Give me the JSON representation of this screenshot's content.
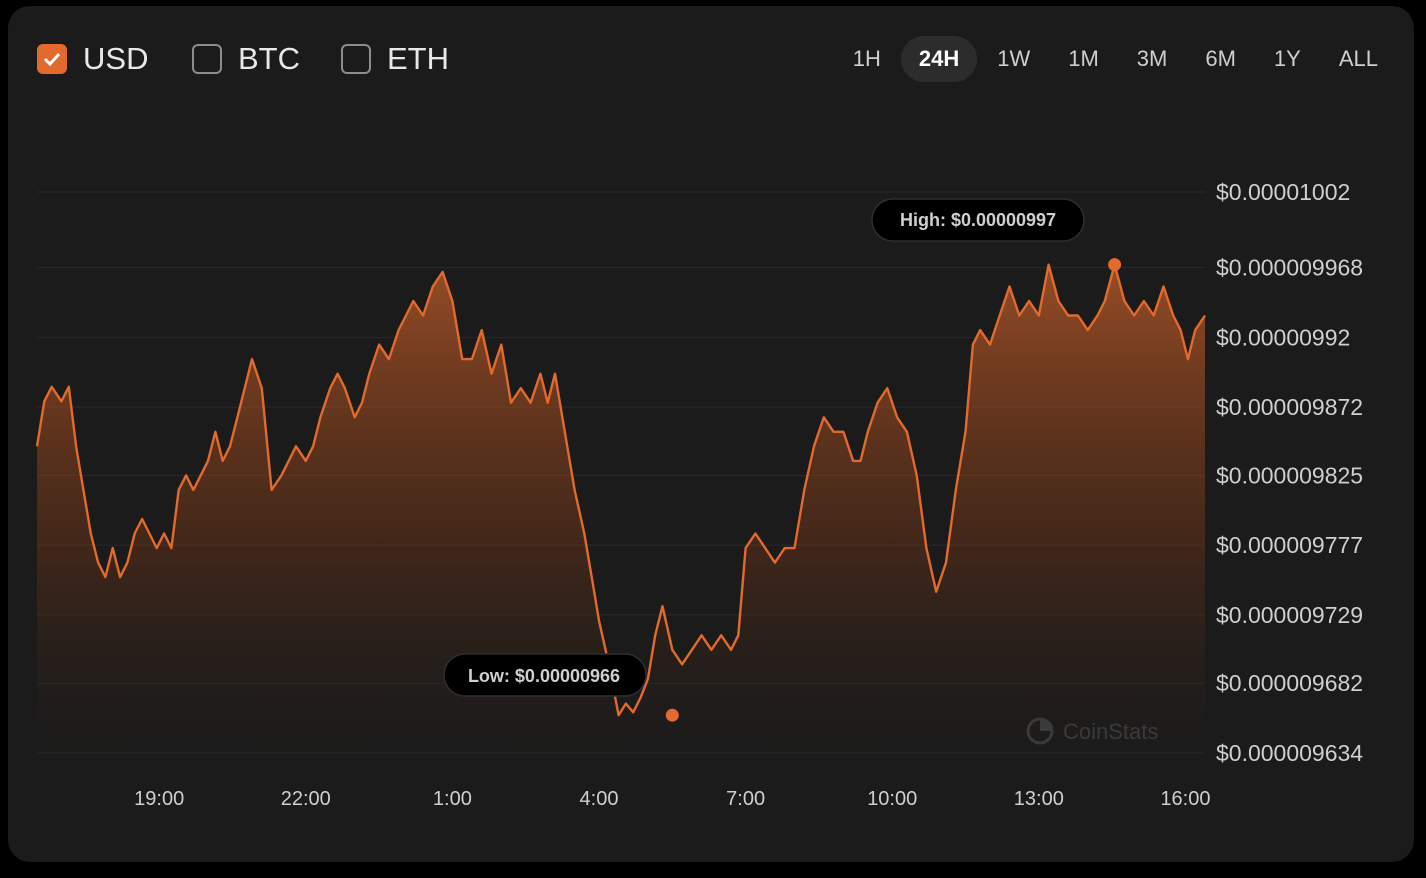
{
  "currencies": [
    {
      "label": "USD",
      "checked": true
    },
    {
      "label": "BTC",
      "checked": false
    },
    {
      "label": "ETH",
      "checked": false
    }
  ],
  "ranges": [
    {
      "label": "1H",
      "active": false
    },
    {
      "label": "24H",
      "active": true
    },
    {
      "label": "1W",
      "active": false
    },
    {
      "label": "1M",
      "active": false
    },
    {
      "label": "3M",
      "active": false
    },
    {
      "label": "6M",
      "active": false
    },
    {
      "label": "1Y",
      "active": false
    },
    {
      "label": "ALL",
      "active": false
    }
  ],
  "tooltips": {
    "high": "High: $0.00000997",
    "low": "Low: $0.00000966"
  },
  "watermark": "CoinStats",
  "colors": {
    "accent": "#e26a2c",
    "background": "#1b1b1b",
    "grid": "#2a2a2a",
    "text": "#cfcfcf"
  },
  "chart_data": {
    "type": "area",
    "x_unit": "hour of day (time axis; values past 24 are the next day)",
    "ylim": [
      9.634e-06,
      1.002e-05
    ],
    "y_ticks": [
      1.002e-05,
      9.968e-06,
      9.92e-06,
      9.872e-06,
      9.825e-06,
      9.777e-06,
      9.729e-06,
      9.682e-06,
      9.634e-06
    ],
    "y_tick_labels": [
      "$0.00001002",
      "$0.000009968",
      "$0.00000992",
      "$0.000009872",
      "$0.000009825",
      "$0.000009777",
      "$0.000009729",
      "$0.000009682",
      "$0.000009634"
    ],
    "x_ticks": [
      19,
      22,
      25,
      28,
      31,
      34,
      37,
      40
    ],
    "x_tick_labels": [
      "19:00",
      "22:00",
      "1:00",
      "4:00",
      "7:00",
      "10:00",
      "13:00",
      "16:00"
    ],
    "high": {
      "x": 38.55,
      "y": 9.97e-06
    },
    "low": {
      "x": 29.5,
      "y": 9.66e-06
    },
    "series": [
      {
        "x": [
          16.5,
          16.65,
          16.8,
          17.0,
          17.15,
          17.3,
          17.45,
          17.6,
          17.75,
          17.9,
          18.05,
          18.2,
          18.35,
          18.5,
          18.65,
          18.8,
          18.95,
          19.1,
          19.25,
          19.4,
          19.55,
          19.7,
          19.85,
          20.0,
          20.15,
          20.3,
          20.45,
          20.6,
          20.75,
          20.9,
          21.1,
          21.3,
          21.5,
          21.65,
          21.8,
          22.0,
          22.15,
          22.3,
          22.5,
          22.65,
          22.8,
          23.0,
          23.15,
          23.3,
          23.5,
          23.7,
          23.9,
          24.05,
          24.2,
          24.4,
          24.6,
          24.8,
          25.0,
          25.2,
          25.4,
          25.6,
          25.8,
          26.0,
          26.2,
          26.4,
          26.6,
          26.8,
          26.95,
          27.1,
          27.3,
          27.5,
          27.7,
          27.85,
          28.0,
          28.2,
          28.4,
          28.55,
          28.7,
          28.85,
          29.0,
          29.15,
          29.3,
          29.5,
          29.7,
          29.9,
          30.1,
          30.3,
          30.5,
          30.7,
          30.85,
          31.0,
          31.2,
          31.4,
          31.6,
          31.8,
          32.0,
          32.2,
          32.4,
          32.6,
          32.8,
          33.0,
          33.2,
          33.35,
          33.5,
          33.7,
          33.9,
          34.1,
          34.3,
          34.5,
          34.7,
          34.9,
          35.1,
          35.3,
          35.5,
          35.65,
          35.8,
          36.0,
          36.2,
          36.4,
          36.6,
          36.8,
          37.0,
          37.2,
          37.4,
          37.6,
          37.8,
          38.0,
          38.2,
          38.35,
          38.55,
          38.75,
          38.95,
          39.15,
          39.35,
          39.55,
          39.75,
          39.9,
          40.05,
          40.2,
          40.4
        ],
        "y": [
          9.845e-06,
          9.876e-06,
          9.886e-06,
          9.876e-06,
          9.886e-06,
          9.845e-06,
          9.815e-06,
          9.785e-06,
          9.765e-06,
          9.755e-06,
          9.775e-06,
          9.755e-06,
          9.765e-06,
          9.785e-06,
          9.795e-06,
          9.785e-06,
          9.775e-06,
          9.785e-06,
          9.775e-06,
          9.815e-06,
          9.825e-06,
          9.815e-06,
          9.825e-06,
          9.835e-06,
          9.855e-06,
          9.835e-06,
          9.845e-06,
          9.865e-06,
          9.885e-06,
          9.905e-06,
          9.885e-06,
          9.815e-06,
          9.825e-06,
          9.835e-06,
          9.845e-06,
          9.835e-06,
          9.845e-06,
          9.865e-06,
          9.885e-06,
          9.895e-06,
          9.885e-06,
          9.865e-06,
          9.875e-06,
          9.895e-06,
          9.915e-06,
          9.905e-06,
          9.925e-06,
          9.935e-06,
          9.945e-06,
          9.935e-06,
          9.955e-06,
          9.965e-06,
          9.945e-06,
          9.905e-06,
          9.905e-06,
          9.925e-06,
          9.895e-06,
          9.915e-06,
          9.875e-06,
          9.885e-06,
          9.875e-06,
          9.895e-06,
          9.875e-06,
          9.895e-06,
          9.855e-06,
          9.815e-06,
          9.785e-06,
          9.755e-06,
          9.725e-06,
          9.695e-06,
          9.66e-06,
          9.668e-06,
          9.662e-06,
          9.672e-06,
          9.685e-06,
          9.715e-06,
          9.735e-06,
          9.705e-06,
          9.695e-06,
          9.705e-06,
          9.715e-06,
          9.705e-06,
          9.715e-06,
          9.705e-06,
          9.715e-06,
          9.775e-06,
          9.785e-06,
          9.775e-06,
          9.765e-06,
          9.775e-06,
          9.775e-06,
          9.815e-06,
          9.845e-06,
          9.865e-06,
          9.855e-06,
          9.855e-06,
          9.835e-06,
          9.835e-06,
          9.855e-06,
          9.875e-06,
          9.885e-06,
          9.865e-06,
          9.855e-06,
          9.825e-06,
          9.775e-06,
          9.745e-06,
          9.765e-06,
          9.815e-06,
          9.855e-06,
          9.915e-06,
          9.925e-06,
          9.915e-06,
          9.935e-06,
          9.955e-06,
          9.935e-06,
          9.945e-06,
          9.935e-06,
          9.97e-06,
          9.945e-06,
          9.935e-06,
          9.935e-06,
          9.925e-06,
          9.935e-06,
          9.945e-06,
          9.97e-06,
          9.945e-06,
          9.935e-06,
          9.945e-06,
          9.935e-06,
          9.955e-06,
          9.935e-06,
          9.925e-06,
          9.905e-06,
          9.925e-06,
          9.935e-06
        ]
      }
    ]
  }
}
